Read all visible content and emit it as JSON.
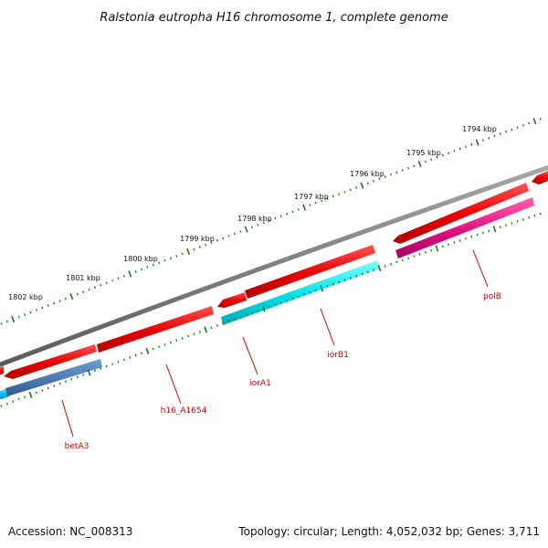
{
  "map": {
    "title": "Ralstonia eutropha H16 chromosome 1, complete genome",
    "accession_text": "Accession: NC_008313",
    "summary_text": "Topology: circular; Length: 4,052,032 bp; Genes: 3,711",
    "colors": {
      "backbone": "#808080",
      "tick": "#1a7a1a",
      "forward_gene": "#ee0000",
      "label": "#cc0000",
      "leader": "#cc0000"
    },
    "scale_ticks": [
      {
        "label": "1802 kbp"
      },
      {
        "label": "1801 kbp"
      },
      {
        "label": "1800 kbp"
      },
      {
        "label": "1799 kbp"
      },
      {
        "label": "1798 kbp"
      },
      {
        "label": "1797 kbp"
      },
      {
        "label": "1796 kbp"
      },
      {
        "label": "1795 kbp"
      },
      {
        "label": "1794 kbp"
      }
    ],
    "gene_labels": [
      {
        "name": "betA3",
        "color": "#4a7ab0"
      },
      {
        "name": "h16_A1654",
        "color": "#00c0ff"
      },
      {
        "name": "iorA1",
        "color": "#ee0000"
      },
      {
        "name": "iorB1",
        "color": "#00e0e0"
      },
      {
        "name": "polB",
        "color": "#e01080"
      }
    ]
  }
}
